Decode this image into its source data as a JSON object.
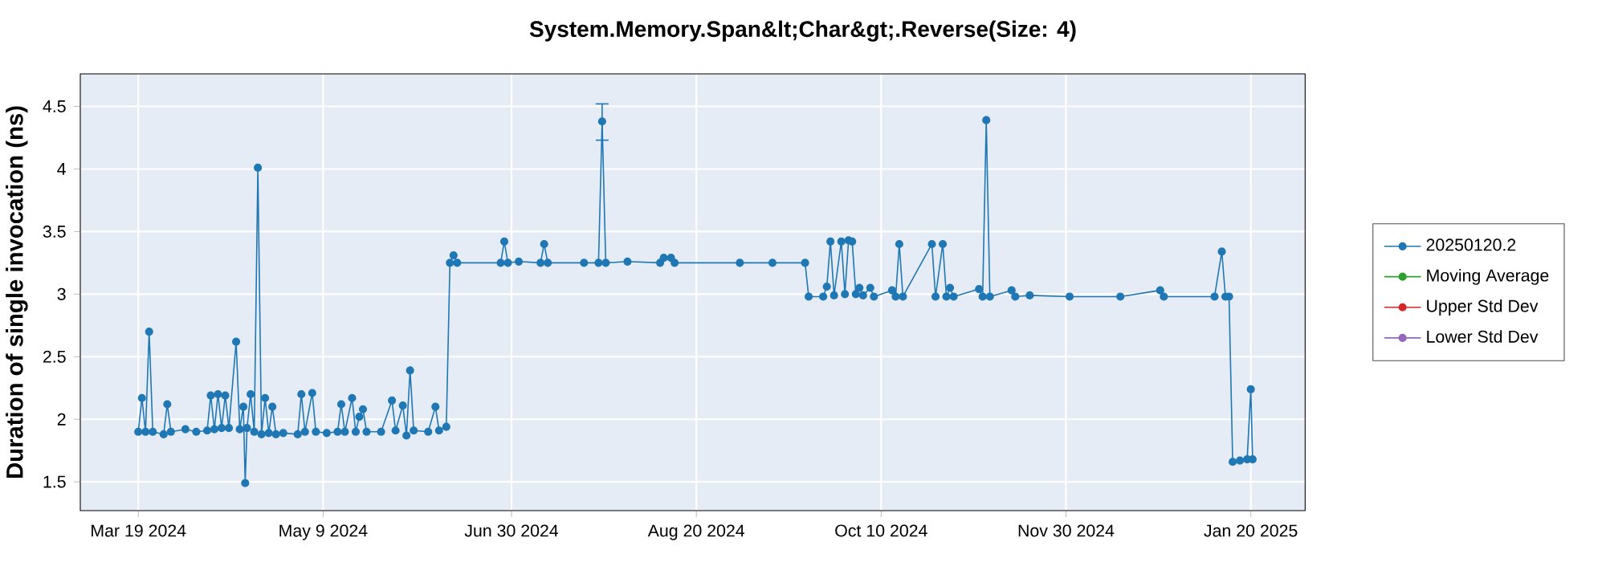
{
  "chart_data": {
    "type": "line",
    "title": "System.Memory.Span&lt;Char&gt;.Reverse(Size: 4)",
    "ylabel": "Duration of single invocation (ns)",
    "xlim": [
      "2024-03-03",
      "2025-02-04"
    ],
    "ylim": [
      1.27,
      4.76
    ],
    "xticks": [
      {
        "value": "2024-03-19",
        "label": "Mar 19 2024"
      },
      {
        "value": "2024-05-09",
        "label": "May 9 2024"
      },
      {
        "value": "2024-06-30",
        "label": "Jun 30 2024"
      },
      {
        "value": "2024-08-20",
        "label": "Aug 20 2024"
      },
      {
        "value": "2024-10-10",
        "label": "Oct 10 2024"
      },
      {
        "value": "2024-11-30",
        "label": "Nov 30 2024"
      },
      {
        "value": "2025-01-20",
        "label": "Jan 20 2025"
      }
    ],
    "yticks": [
      1.5,
      2,
      2.5,
      3,
      3.5,
      4,
      4.5
    ],
    "grid": true,
    "legend": "right",
    "marker": "circle",
    "line_style": "solid",
    "series": [
      {
        "name": "20250120.2",
        "color": "#1f77b4",
        "x": [
          "2024-03-19",
          "2024-03-20",
          "2024-03-21",
          "2024-03-22",
          "2024-03-23",
          "2024-03-26",
          "2024-03-27",
          "2024-03-28",
          "2024-04-01",
          "2024-04-04",
          "2024-04-07",
          "2024-04-08",
          "2024-04-09",
          "2024-04-10",
          "2024-04-11",
          "2024-04-12",
          "2024-04-13",
          "2024-04-15",
          "2024-04-16",
          "2024-04-17",
          "2024-04-17T12:00",
          "2024-04-18",
          "2024-04-19",
          "2024-04-20",
          "2024-04-21",
          "2024-04-22",
          "2024-04-23",
          "2024-04-24",
          "2024-04-25",
          "2024-04-26",
          "2024-04-28",
          "2024-05-02",
          "2024-05-03",
          "2024-05-04",
          "2024-05-06",
          "2024-05-07",
          "2024-05-10",
          "2024-05-13",
          "2024-05-14",
          "2024-05-15",
          "2024-05-17",
          "2024-05-18",
          "2024-05-19",
          "2024-05-20",
          "2024-05-21",
          "2024-05-25",
          "2024-05-28",
          "2024-05-29",
          "2024-05-31",
          "2024-06-01",
          "2024-06-02",
          "2024-06-03",
          "2024-06-07",
          "2024-06-09",
          "2024-06-10",
          "2024-06-12",
          "2024-06-13",
          "2024-06-14",
          "2024-06-15",
          "2024-06-27",
          "2024-06-28",
          "2024-06-29",
          "2024-07-02",
          "2024-07-08",
          "2024-07-09",
          "2024-07-10",
          "2024-07-20",
          "2024-07-24",
          "2024-07-25",
          "2024-07-26",
          "2024-08-01",
          "2024-08-10",
          "2024-08-11",
          "2024-08-13",
          "2024-08-14",
          "2024-09-01",
          "2024-09-10",
          "2024-09-19",
          "2024-09-20",
          "2024-09-24",
          "2024-09-25",
          "2024-09-26",
          "2024-09-27",
          "2024-09-29",
          "2024-09-30",
          "2024-10-01",
          "2024-10-02",
          "2024-10-03",
          "2024-10-04",
          "2024-10-05",
          "2024-10-07",
          "2024-10-08",
          "2024-10-13",
          "2024-10-14",
          "2024-10-15",
          "2024-10-16",
          "2024-10-24",
          "2024-10-25",
          "2024-10-27",
          "2024-10-28",
          "2024-10-29",
          "2024-10-30",
          "2024-11-06",
          "2024-11-07",
          "2024-11-08",
          "2024-11-09",
          "2024-11-15",
          "2024-11-16",
          "2024-11-20",
          "2024-12-01",
          "2024-12-15",
          "2024-12-26",
          "2024-12-27",
          "2025-01-10",
          "2025-01-12",
          "2025-01-13",
          "2025-01-14",
          "2025-01-15",
          "2025-01-17",
          "2025-01-19",
          "2025-01-20",
          "2025-01-20T12:00"
        ],
        "values": [
          1.9,
          2.17,
          1.9,
          2.7,
          1.9,
          1.88,
          2.12,
          1.9,
          1.92,
          1.9,
          1.91,
          2.19,
          1.92,
          2.2,
          1.93,
          2.19,
          1.93,
          2.62,
          1.92,
          2.1,
          1.49,
          1.93,
          2.2,
          1.9,
          4.01,
          1.88,
          2.17,
          1.89,
          2.1,
          1.88,
          1.89,
          1.88,
          2.2,
          1.9,
          2.21,
          1.9,
          1.89,
          1.9,
          2.12,
          1.9,
          2.17,
          1.9,
          2.02,
          2.08,
          1.9,
          1.9,
          2.15,
          1.91,
          2.11,
          1.87,
          2.39,
          1.91,
          1.9,
          2.1,
          1.91,
          1.94,
          3.25,
          3.31,
          3.25,
          3.25,
          3.42,
          3.25,
          3.26,
          3.25,
          3.4,
          3.25,
          3.25,
          3.25,
          4.38,
          3.25,
          3.26,
          3.25,
          3.29,
          3.29,
          3.25,
          3.25,
          3.25,
          3.25,
          2.98,
          2.98,
          3.06,
          3.42,
          2.99,
          3.42,
          3.0,
          3.43,
          3.42,
          3.0,
          3.05,
          2.99,
          3.05,
          2.98,
          3.03,
          2.98,
          3.4,
          2.98,
          3.4,
          2.98,
          3.4,
          2.98,
          3.05,
          2.98,
          3.04,
          2.98,
          4.39,
          2.98,
          3.03,
          2.98,
          2.99,
          2.98,
          2.98,
          3.03,
          2.98,
          2.98,
          3.34,
          2.98,
          2.98,
          1.66,
          1.67,
          1.68,
          2.24,
          1.68
        ],
        "errors": [
          null,
          null,
          null,
          null,
          null,
          null,
          null,
          null,
          null,
          null,
          null,
          null,
          null,
          null,
          null,
          null,
          null,
          null,
          null,
          null,
          null,
          null,
          null,
          null,
          null,
          null,
          null,
          null,
          null,
          null,
          null,
          null,
          null,
          null,
          null,
          null,
          null,
          null,
          null,
          null,
          null,
          null,
          null,
          null,
          null,
          null,
          null,
          null,
          null,
          null,
          null,
          null,
          null,
          null,
          null,
          null,
          null,
          null,
          null,
          null,
          null,
          null,
          null,
          null,
          null,
          null,
          null,
          null,
          [
            4.23,
            4.52
          ],
          null,
          null,
          null,
          null,
          null,
          null,
          null,
          null,
          null,
          null,
          null,
          null,
          null,
          null,
          null,
          null,
          null,
          null,
          null,
          null,
          null,
          null,
          null,
          null,
          null,
          null,
          null,
          null,
          null,
          null,
          null,
          null,
          null,
          null,
          null,
          null,
          null,
          null,
          null,
          null,
          null,
          null,
          null,
          null,
          null,
          null,
          null,
          null,
          null,
          null,
          null,
          null,
          null
        ]
      },
      {
        "name": "Moving Average",
        "color": "#2ca02c"
      },
      {
        "name": "Upper Std Dev",
        "color": "#d62728"
      },
      {
        "name": "Lower Std Dev",
        "color": "#9467bd"
      }
    ]
  }
}
